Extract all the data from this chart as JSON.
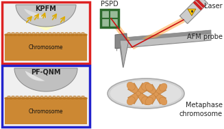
{
  "bg_color": "#ffffff",
  "box1_border": "#dd2222",
  "box2_border": "#2222cc",
  "box_bg": "#f0f0f0",
  "kpfm_text": "KPFM",
  "pf_text": "PF-QNM",
  "chrom_text": "Chromosome",
  "pspd_text": "PSPD",
  "laser_text": "Laser",
  "afm_text": "AFM probe",
  "meta_text": "Metaphase\nchromosome",
  "chrom_color": "#cc8833",
  "chrom_dark": "#b87020",
  "sphere_gray": "#c8c8c8",
  "sphere_light": "#e8e8e8",
  "sphere_dark": "#909090",
  "plate_top": "#c0c0c0",
  "plate_side": "#909090",
  "laser_body": "#cccccc",
  "laser_red": "#cc2222",
  "probe_light": "#c0c0c0",
  "probe_dark": "#888888",
  "beam_orange": "#ff8833",
  "red_line": "#cc1111",
  "pspd_green": "#2d6a2d",
  "pspd_fill": "#99bb99",
  "dish_color": "#d5d5d5",
  "dish_rim": "#aaaaaa",
  "font_size": 7,
  "font_size_sm": 5.5,
  "chrom_bumpy_color": "#bb7722"
}
